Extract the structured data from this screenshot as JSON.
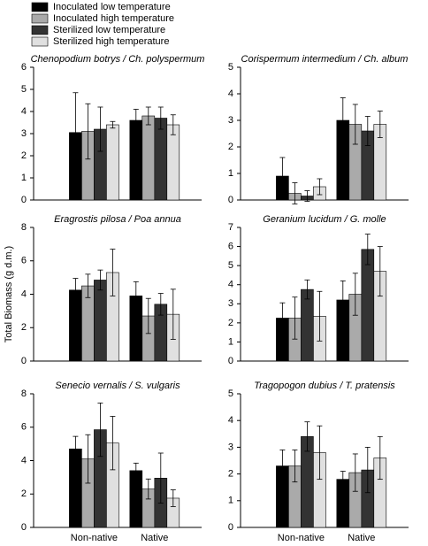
{
  "chart_data": [
    {
      "type": "bar",
      "title": "Chenopodium botrys / Ch. polyspermum",
      "categories": [
        null,
        null
      ],
      "series": [
        {
          "name": "Inoculated low temperature",
          "color": "#000000",
          "values": [
            3.05,
            3.6
          ],
          "errors": [
            1.8,
            0.5
          ]
        },
        {
          "name": "Inoculated high temperature",
          "color": "#aaaaaa",
          "values": [
            3.1,
            3.8
          ],
          "errors": [
            1.25,
            0.4
          ]
        },
        {
          "name": "Sterilized low temperature",
          "color": "#333333",
          "values": [
            3.2,
            3.7
          ],
          "errors": [
            1.0,
            0.5
          ]
        },
        {
          "name": "Sterilized high temperature",
          "color": "#e0e0e0",
          "values": [
            3.4,
            3.4
          ],
          "errors": [
            0.15,
            0.45
          ]
        }
      ],
      "ylim": [
        0,
        6
      ],
      "yticks": [
        0,
        1,
        2,
        3,
        4,
        5,
        6
      ]
    },
    {
      "type": "bar",
      "title": "Corispermum intermedium / Ch. album",
      "categories": [
        null,
        null
      ],
      "series": [
        {
          "color": "#000000",
          "values": [
            0.9,
            3.0
          ],
          "errors": [
            0.7,
            0.85
          ]
        },
        {
          "color": "#aaaaaa",
          "values": [
            0.25,
            2.85
          ],
          "errors": [
            0.4,
            0.75
          ]
        },
        {
          "color": "#333333",
          "values": [
            0.15,
            2.6
          ],
          "errors": [
            0.2,
            0.55
          ]
        },
        {
          "color": "#e0e0e0",
          "values": [
            0.5,
            2.85
          ],
          "errors": [
            0.3,
            0.5
          ]
        }
      ],
      "ylim": [
        0,
        5
      ],
      "yticks": [
        0,
        1,
        2,
        3,
        4,
        5
      ]
    },
    {
      "type": "bar",
      "title": "Eragrostis pilosa / Poa annua",
      "ylabel": "Total Biomass (g d.m.)",
      "categories": [
        null,
        null
      ],
      "series": [
        {
          "color": "#000000",
          "values": [
            4.25,
            3.9
          ],
          "errors": [
            0.7,
            0.85
          ]
        },
        {
          "color": "#aaaaaa",
          "values": [
            4.5,
            2.7
          ],
          "errors": [
            0.7,
            1.05
          ]
        },
        {
          "color": "#333333",
          "values": [
            4.85,
            3.4
          ],
          "errors": [
            0.6,
            0.65
          ]
        },
        {
          "color": "#e0e0e0",
          "values": [
            5.3,
            2.8
          ],
          "errors": [
            1.4,
            1.5
          ]
        }
      ],
      "ylim": [
        0,
        8
      ],
      "yticks": [
        0,
        2,
        4,
        6,
        8
      ]
    },
    {
      "type": "bar",
      "title": "Geranium lucidum / G. molle",
      "categories": [
        null,
        null
      ],
      "series": [
        {
          "color": "#000000",
          "values": [
            2.25,
            3.2
          ],
          "errors": [
            0.8,
            1.0
          ]
        },
        {
          "color": "#aaaaaa",
          "values": [
            2.25,
            3.5
          ],
          "errors": [
            1.1,
            1.1
          ]
        },
        {
          "color": "#333333",
          "values": [
            3.75,
            5.85
          ],
          "errors": [
            0.5,
            0.8
          ]
        },
        {
          "color": "#e0e0e0",
          "values": [
            2.35,
            4.7
          ],
          "errors": [
            1.3,
            1.3
          ]
        }
      ],
      "ylim": [
        0,
        7
      ],
      "yticks": [
        0,
        1,
        2,
        3,
        4,
        5,
        6,
        7
      ]
    },
    {
      "type": "bar",
      "title": "Senecio vernalis / S. vulgaris",
      "categories": [
        "Non-native",
        "Native"
      ],
      "series": [
        {
          "color": "#000000",
          "values": [
            4.7,
            3.4
          ],
          "errors": [
            0.75,
            0.45
          ]
        },
        {
          "color": "#aaaaaa",
          "values": [
            4.1,
            2.3
          ],
          "errors": [
            1.45,
            0.6
          ]
        },
        {
          "color": "#333333",
          "values": [
            5.85,
            2.95
          ],
          "errors": [
            1.6,
            1.5
          ]
        },
        {
          "color": "#e0e0e0",
          "values": [
            5.05,
            1.75
          ],
          "errors": [
            1.6,
            0.5
          ]
        }
      ],
      "ylim": [
        0,
        8
      ],
      "yticks": [
        0,
        2,
        4,
        6,
        8
      ]
    },
    {
      "type": "bar",
      "title": "Tragopogon dubius / T. pratensis",
      "categories": [
        "Non-native",
        "Native"
      ],
      "series": [
        {
          "color": "#000000",
          "values": [
            2.3,
            1.8
          ],
          "errors": [
            0.6,
            0.3
          ]
        },
        {
          "color": "#aaaaaa",
          "values": [
            2.3,
            2.05
          ],
          "errors": [
            0.6,
            0.7
          ]
        },
        {
          "color": "#333333",
          "values": [
            3.4,
            2.15
          ],
          "errors": [
            0.55,
            0.85
          ]
        },
        {
          "color": "#e0e0e0",
          "values": [
            2.8,
            2.6
          ],
          "errors": [
            1.0,
            0.8
          ]
        }
      ],
      "ylim": [
        0,
        5
      ],
      "yticks": [
        0,
        1,
        2,
        3,
        4,
        5
      ]
    }
  ]
}
